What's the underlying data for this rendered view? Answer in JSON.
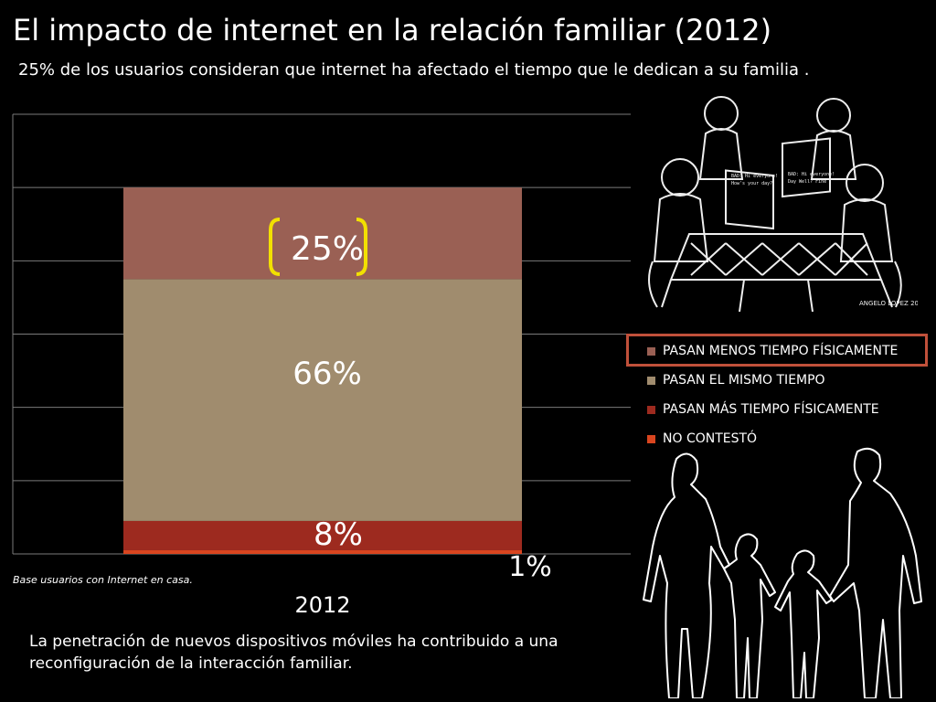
{
  "title": "El impacto de internet en la relación familiar (2012)",
  "subtitle": "25% de los usuarios consideran que internet ha afectado el tiempo que le dedican a su familia .",
  "note_base": "Base usuarios con Internet en casa.",
  "footer": "La penetración de nuevos dispositivos móviles ha contribuido a una reconfiguración de la interacción familiar.",
  "illustration_credit": "ANGELO LOPEZ 2008",
  "colors": {
    "menos": "#9a6054",
    "mismo": "#a08c6e",
    "mas": "#9d2a1f",
    "no_contesto": "#d9451f",
    "highlight": "#c0503a",
    "bracket": "#f2e000"
  },
  "chart_data": {
    "type": "bar",
    "stacked": true,
    "categories": [
      "2012"
    ],
    "series": [
      {
        "name": "NO CONTESTÓ",
        "values": [
          1
        ],
        "label": "1%"
      },
      {
        "name": "PASAN MÁS TIEMPO FÍSICAMENTE",
        "values": [
          8
        ],
        "label": "8%"
      },
      {
        "name": "PASAN EL MISMO TIEMPO",
        "values": [
          66
        ],
        "label": "66%"
      },
      {
        "name": "PASAN MENOS TIEMPO FÍSICAMENTE",
        "values": [
          25
        ],
        "label": "25%"
      }
    ],
    "ylim": [
      0,
      100
    ],
    "grid": true,
    "legend_position": "right",
    "highlighted_series": "PASAN MENOS TIEMPO FÍSICAMENTE"
  },
  "legend": [
    {
      "label": "PASAN MENOS TIEMPO FÍSICAMENTE",
      "color_key": "menos"
    },
    {
      "label": "PASAN EL MISMO TIEMPO",
      "color_key": "mismo"
    },
    {
      "label": "PASAN MÁS TIEMPO FÍSICAMENTE",
      "color_key": "mas"
    },
    {
      "label": "NO CONTESTÓ",
      "color_key": "no_contesto"
    }
  ]
}
